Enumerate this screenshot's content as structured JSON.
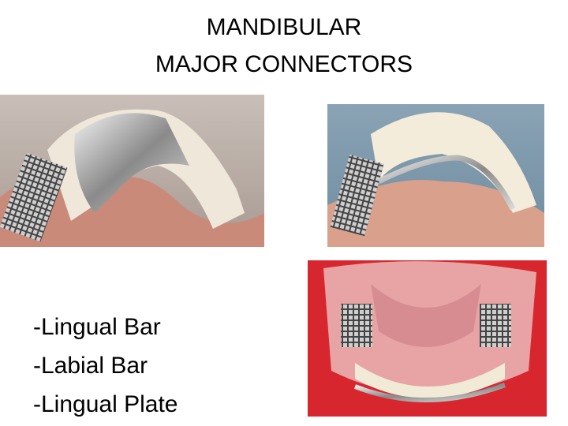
{
  "slide": {
    "title": [
      "MANDIBULAR",
      "MAJOR CONNECTORS"
    ],
    "items": [
      "-Lingual Bar",
      "-Labial Bar",
      "-Lingual Plate"
    ]
  }
}
